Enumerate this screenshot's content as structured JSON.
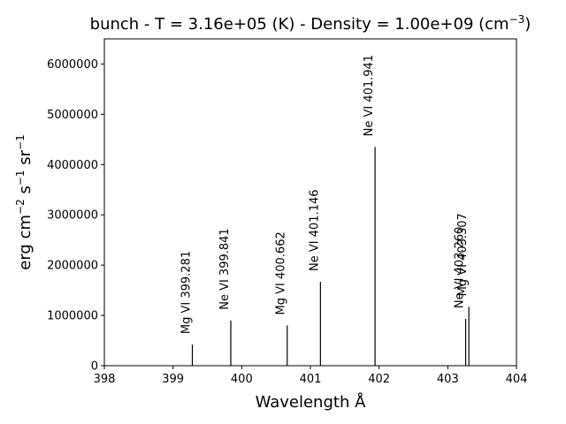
{
  "chart_data": {
    "type": "bar",
    "title": "bunch -  T =   3.16e+05 (K) -  Density =   1.00e+09 (cm",
    "title_superscript": "−3",
    "title_suffix": ")",
    "xlabel": "Wavelength Å",
    "ylabel_base": "erg cm",
    "ylabel_sup1": "−2",
    "ylabel_mid1": " s",
    "ylabel_sup2": "−1",
    "ylabel_mid2": " sr",
    "ylabel_sup3": "−1",
    "xlim": [
      398,
      404
    ],
    "ylim": [
      0,
      6500000
    ],
    "x_ticks": [
      "398",
      "399",
      "400",
      "401",
      "402",
      "403",
      "404"
    ],
    "y_ticks": [
      "0",
      "1000000",
      "2000000",
      "3000000",
      "4000000",
      "5000000",
      "6000000"
    ],
    "lines": [
      {
        "label": "Mg VI 399.281",
        "wavelength": 399.281,
        "intensity": 420000
      },
      {
        "label": "Ne VI 399.841",
        "wavelength": 399.841,
        "intensity": 900000
      },
      {
        "label": "Mg VI 400.662",
        "wavelength": 400.662,
        "intensity": 800000
      },
      {
        "label": "Ne VI 401.146",
        "wavelength": 401.146,
        "intensity": 1670000
      },
      {
        "label": "Ne VI 401.941",
        "wavelength": 401.941,
        "intensity": 4350000
      },
      {
        "label": "Ne VI 403.260",
        "wavelength": 403.26,
        "intensity": 930000
      },
      {
        "label": "Mg VI 403.307",
        "wavelength": 403.307,
        "intensity": 1170000
      }
    ]
  }
}
